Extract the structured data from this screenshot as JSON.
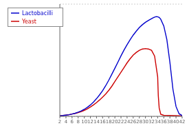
{
  "chart_data": {
    "type": "line",
    "title": "",
    "xlim": [
      2,
      42
    ],
    "xticks": [
      2,
      4,
      6,
      8,
      10,
      12,
      14,
      16,
      18,
      20,
      22,
      24,
      26,
      28,
      30,
      32,
      34,
      36,
      38,
      40,
      42
    ],
    "ylim": [
      0,
      1.08
    ],
    "yticks": [
      0,
      0.2,
      0.4,
      0.6,
      0.8,
      1.0
    ],
    "grid": "y",
    "legend": "upper left",
    "tick_labels": "x",
    "series": [
      {
        "name": "Yeast",
        "color": "#cc0000",
        "x": [
          2,
          3,
          4,
          5,
          6,
          7,
          8,
          9,
          10,
          11,
          12,
          13,
          14,
          15,
          16,
          17,
          18,
          19,
          20,
          21,
          22,
          23,
          24,
          25,
          26,
          27,
          28,
          29,
          30,
          31,
          32,
          33,
          34,
          34.2,
          34.5,
          35,
          36,
          38,
          40,
          42
        ],
        "values": [
          0.005,
          0.008,
          0.012,
          0.016,
          0.022,
          0.028,
          0.036,
          0.046,
          0.058,
          0.072,
          0.09,
          0.11,
          0.133,
          0.158,
          0.185,
          0.215,
          0.25,
          0.29,
          0.335,
          0.38,
          0.425,
          0.47,
          0.515,
          0.555,
          0.59,
          0.615,
          0.635,
          0.648,
          0.652,
          0.648,
          0.635,
          0.58,
          0.38,
          0.2,
          0.08,
          0.02,
          0.01,
          0.008,
          0.007,
          0.006
        ]
      },
      {
        "name": "Lactobacilli",
        "color": "#0000cc",
        "x": [
          2,
          3,
          4,
          5,
          6,
          7,
          8,
          9,
          10,
          11,
          12,
          13,
          14,
          15,
          16,
          17,
          18,
          19,
          20,
          21,
          22,
          23,
          24,
          25,
          26,
          27,
          28,
          29,
          30,
          31,
          32,
          32.5,
          33,
          33.5,
          34,
          34.5,
          35,
          36,
          37,
          38,
          39,
          40,
          41,
          42
        ],
        "values": [
          0.005,
          0.008,
          0.012,
          0.016,
          0.022,
          0.03,
          0.04,
          0.052,
          0.068,
          0.087,
          0.11,
          0.138,
          0.17,
          0.207,
          0.248,
          0.295,
          0.348,
          0.405,
          0.463,
          0.522,
          0.582,
          0.638,
          0.69,
          0.738,
          0.782,
          0.82,
          0.854,
          0.882,
          0.905,
          0.924,
          0.94,
          0.948,
          0.955,
          0.96,
          0.958,
          0.952,
          0.935,
          0.87,
          0.74,
          0.52,
          0.26,
          0.095,
          0.025,
          0.008
        ]
      }
    ]
  }
}
